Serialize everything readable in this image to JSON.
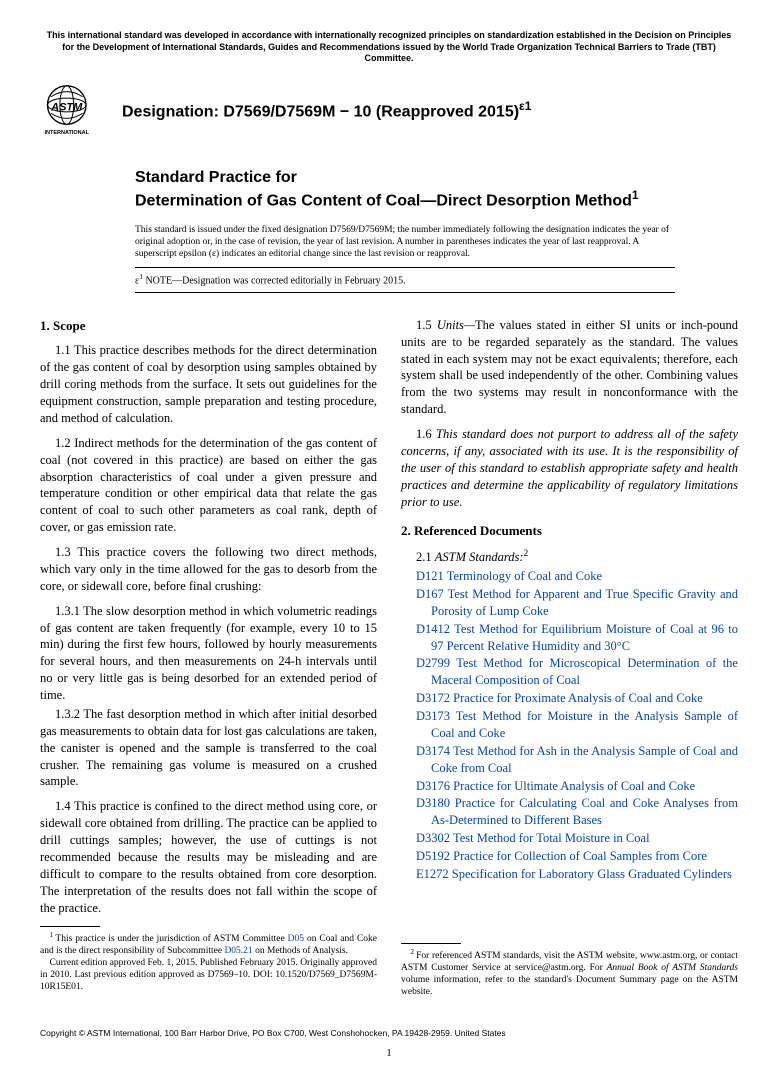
{
  "top_disclaimer": "This international standard was developed in accordance with internationally recognized principles on standardization established in the Decision on Principles for the Development of International Standards, Guides and Recommendations issued by the World Trade Organization Technical Barriers to Trade (TBT) Committee.",
  "designation_label": "Designation: D7569/D7569M − 10 (Reapproved 2015)",
  "designation_sup": "ε1",
  "logo_text_top": "INTERNATIONAL",
  "title_pre": "Standard Practice for",
  "title_main": "Determination of Gas Content of Coal—Direct Desorption Method",
  "title_sup": "1",
  "issue_note": "This standard is issued under the fixed designation D7569/D7569M; the number immediately following the designation indicates the year of original adoption or, in the case of revision, the year of last revision. A number in parentheses indicates the year of last reapproval. A superscript epsilon (ε) indicates an editorial change since the last revision or reapproval.",
  "eps_note_prefix": "ε",
  "eps_note_sup": "1",
  "eps_note_text": " NOTE—Designation was corrected editorially in February 2015.",
  "scope_head": "1. Scope",
  "p1_1": "1.1 This practice describes methods for the direct determination of the gas content of coal by desorption using samples obtained by drill coring methods from the surface. It sets out guidelines for the equipment construction, sample preparation and testing procedure, and method of calculation.",
  "p1_2": "1.2 Indirect methods for the determination of the gas content of coal (not covered in this practice) are based on either the gas absorption characteristics of coal under a given pressure and temperature condition or other empirical data that relate the gas content of coal to such other parameters as coal rank, depth of cover, or gas emission rate.",
  "p1_3": "1.3 This practice covers the following two direct methods, which vary only in the time allowed for the gas to desorb from the core, or sidewall core, before final crushing:",
  "p1_3_1": "1.3.1 The slow desorption method in which volumetric readings of gas content are taken frequently (for example, every 10 to 15 min) during the first few hours, followed by hourly measurements for several hours, and then measurements on 24-h intervals until no or very little gas is being desorbed for an extended period of time.",
  "p1_3_2": "1.3.2 The fast desorption method in which after initial desorbed gas measurements to obtain data for lost gas calculations are taken, the canister is opened and the sample is transferred to the coal crusher. The remaining gas volume is measured on a crushed sample.",
  "p1_4": "1.4 This practice is confined to the direct method using core, or sidewall core obtained from drilling. The practice can be applied to drill cuttings samples; however, the use of cuttings is not recommended because the results may be misleading and are difficult to compare to the results obtained from core desorption. The interpretation of the results does not fall within the scope of the practice.",
  "p1_5_lead": "1.5 ",
  "p1_5_ital": "Units—",
  "p1_5_rest": "The values stated in either SI units or inch-pound units are to be regarded separately as the standard. The values stated in each system may not be exact equivalents; therefore, each system shall be used independently of the other. Combining values from the two systems may result in nonconformance with the standard.",
  "p1_6_lead": "1.6 ",
  "p1_6_ital": "This standard does not purport to address all of the safety concerns, if any, associated with its use. It is the responsibility of the user of this standard to establish appropriate safety and health practices and determine the applicability of regulatory limitations prior to use.",
  "refdoc_head": "2. Referenced Documents",
  "astm_std_lead": "2.1 ",
  "astm_std_ital": "ASTM Standards:",
  "astm_std_sup": "2",
  "refs": [
    {
      "code": "D121",
      "title": "Terminology of Coal and Coke"
    },
    {
      "code": "D167",
      "title": "Test Method for Apparent and True Specific Gravity and Porosity of Lump Coke"
    },
    {
      "code": "D1412",
      "title": "Test Method for Equilibrium Moisture of Coal at 96 to 97 Percent Relative Humidity and 30°C"
    },
    {
      "code": "D2799",
      "title": "Test Method for Microscopical Determination of the Maceral Composition of Coal"
    },
    {
      "code": "D3172",
      "title": "Practice for Proximate Analysis of Coal and Coke"
    },
    {
      "code": "D3173",
      "title": "Test Method for Moisture in the Analysis Sample of Coal and Coke"
    },
    {
      "code": "D3174",
      "title": "Test Method for Ash in the Analysis Sample of Coal and Coke from Coal"
    },
    {
      "code": "D3176",
      "title": "Practice for Ultimate Analysis of Coal and Coke"
    },
    {
      "code": "D3180",
      "title": "Practice for Calculating Coal and Coke Analyses from As-Determined to Different Bases"
    },
    {
      "code": "D3302",
      "title": "Test Method for Total Moisture in Coal"
    },
    {
      "code": "D5192",
      "title": "Practice for Collection of Coal Samples from Core"
    },
    {
      "code": "E1272",
      "title": "Specification for Laboratory Glass Graduated Cylinders"
    }
  ],
  "fn1_a": "This practice is under the jurisdiction of ASTM Committee ",
  "fn1_link1": "D05",
  "fn1_b": " on Coal and Coke and is the direct responsibility of Subcommittee ",
  "fn1_link2": "D05.21",
  "fn1_c": " on Methods of Analysis.",
  "fn1_d": "Current edition approved Feb. 1, 2015. Published February 2015. Originally approved in 2010. Last previous edition approved as D7569–10. DOI: 10.1520/D7569_D7569M-10R15E01.",
  "fn2": "For referenced ASTM standards, visit the ASTM website, www.astm.org, or contact ASTM Customer Service at service@astm.org. For Annual Book of ASTM Standards volume information, refer to the standard's Document Summary page on the ASTM website.",
  "fn2_ital": "Annual Book of ASTM Standards",
  "copyright": "Copyright © ASTM International, 100 Barr Harbor Drive, PO Box C700, West Conshohocken, PA 19428-2959. United States",
  "pagenum": "1"
}
